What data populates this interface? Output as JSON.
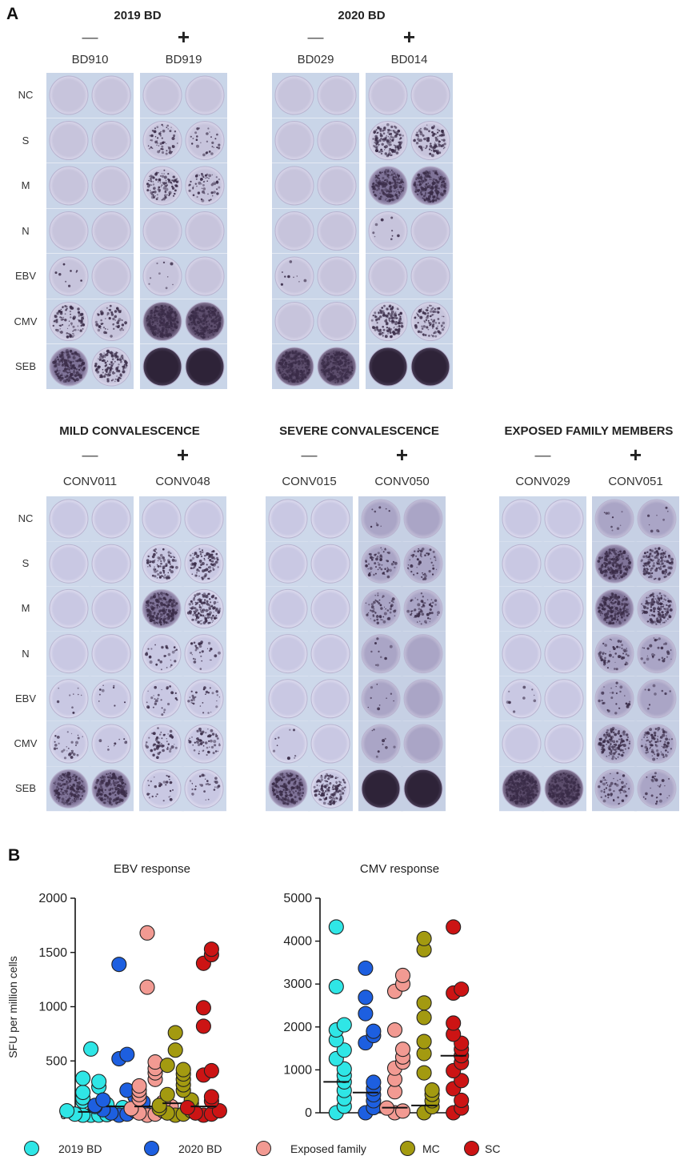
{
  "panel_a": {
    "letter": "A",
    "row_labels": [
      "NC",
      "S",
      "M",
      "N",
      "EBV",
      "CMV",
      "SEB"
    ],
    "top_groups": [
      {
        "title": "2019 BD",
        "columns": [
          {
            "sign": "—",
            "donor": "BD910",
            "response": [
              0,
              0,
              0,
              0,
              1,
              4,
              6
            ],
            "tone": "pale"
          },
          {
            "sign": "+",
            "donor": "BD919",
            "response": [
              0,
              3,
              4,
              0,
              1,
              7,
              9
            ],
            "tone": "pale"
          }
        ]
      },
      {
        "title": "2020 BD",
        "columns": [
          {
            "sign": "—",
            "donor": "BD029",
            "response": [
              0,
              0,
              0,
              0,
              1,
              0,
              7
            ],
            "tone": "pale"
          },
          {
            "sign": "+",
            "donor": "BD014",
            "response": [
              0,
              5,
              6,
              1,
              0,
              5,
              9
            ],
            "tone": "pale"
          }
        ]
      }
    ],
    "bottom_groups": [
      {
        "title": "MILD CONVALESCENCE",
        "columns": [
          {
            "sign": "—",
            "donor": "CONV011",
            "response": [
              0,
              0,
              0,
              0,
              1,
              2,
              6
            ],
            "tone": "light"
          },
          {
            "sign": "+",
            "donor": "CONV048",
            "response": [
              0,
              4,
              6,
              2,
              2,
              3,
              2
            ],
            "tone": "light"
          }
        ]
      },
      {
        "title": "SEVERE CONVALESCENCE",
        "columns": [
          {
            "sign": "—",
            "donor": "CONV015",
            "response": [
              0,
              0,
              0,
              0,
              0,
              1,
              6
            ],
            "tone": "light"
          },
          {
            "sign": "+",
            "donor": "CONV050",
            "response": [
              1,
              3,
              3,
              1,
              1,
              1,
              9
            ],
            "tone": "mid"
          }
        ]
      },
      {
        "title": "EXPOSED FAMILY MEMBERS",
        "columns": [
          {
            "sign": "—",
            "donor": "CONV029",
            "response": [
              0,
              0,
              0,
              0,
              1,
              0,
              8
            ],
            "tone": "light"
          },
          {
            "sign": "+",
            "donor": "CONV051",
            "response": [
              1,
              6,
              6,
              3,
              2,
              5,
              3
            ],
            "tone": "mid"
          }
        ]
      }
    ]
  },
  "panel_b": {
    "letter": "B",
    "ylabel": "SFU per million cells",
    "legend": [
      {
        "label": "2019 BD",
        "color": "#2fe6e6"
      },
      {
        "label": "2020 BD",
        "color": "#1d5fe0"
      },
      {
        "label": "Exposed family",
        "color": "#f29a92"
      },
      {
        "label": "MC",
        "color": "#a39a10"
      },
      {
        "label": "SC",
        "color": "#cc1414"
      }
    ]
  },
  "chart_data": [
    {
      "type": "scatter",
      "title": "EBV response",
      "ylabel": "SFU per million cells",
      "ylim": [
        0,
        2000
      ],
      "yticks": [
        0,
        500,
        1000,
        1500,
        2000
      ],
      "categories": [
        "2019 BD",
        "2020 BD",
        "Exposed family",
        "MC",
        "SC"
      ],
      "series": [
        {
          "name": "2019 BD",
          "values": [
            610,
            340,
            310,
            260,
            210,
            160,
            130,
            100,
            70,
            40,
            20,
            10,
            5,
            0,
            0,
            0
          ],
          "median": 30
        },
        {
          "name": "2020 BD",
          "values": [
            1390,
            560,
            520,
            230,
            170,
            140,
            120,
            90,
            80,
            70,
            50,
            40,
            20,
            10,
            0
          ],
          "median": 80
        },
        {
          "name": "Exposed family",
          "values": [
            1680,
            1180,
            490,
            430,
            390,
            330,
            270,
            230,
            190,
            150,
            120,
            80,
            60,
            40,
            20,
            10,
            0
          ],
          "median": 80
        },
        {
          "name": "MC",
          "values": [
            760,
            600,
            460,
            420,
            380,
            330,
            280,
            230,
            190,
            140,
            110,
            90,
            60,
            40,
            20,
            10,
            0
          ],
          "median": 110
        },
        {
          "name": "SC",
          "values": [
            1530,
            1480,
            1400,
            990,
            820,
            410,
            370,
            170,
            130,
            70,
            40,
            20,
            10,
            0
          ],
          "median": 80
        }
      ]
    },
    {
      "type": "scatter",
      "title": "CMV response",
      "ylim": [
        0,
        5000
      ],
      "yticks": [
        0,
        1000,
        2000,
        3000,
        4000,
        5000
      ],
      "categories": [
        "2019 BD",
        "2020 BD",
        "Exposed family",
        "MC",
        "SC"
      ],
      "series": [
        {
          "name": "2019 BD",
          "values": [
            4330,
            2940,
            2050,
            1930,
            1700,
            1460,
            1260,
            1020,
            870,
            720,
            520,
            330,
            150,
            0
          ],
          "median": 720
        },
        {
          "name": "2020 BD",
          "values": [
            3370,
            2690,
            2310,
            1900,
            1800,
            1630,
            710,
            560,
            420,
            280,
            120,
            0
          ],
          "median": 470
        },
        {
          "name": "Exposed family",
          "values": [
            3200,
            3000,
            2830,
            1930,
            1480,
            1300,
            1180,
            1040,
            780,
            490,
            110,
            40,
            0
          ],
          "median": 120
        },
        {
          "name": "MC",
          "values": [
            4060,
            3800,
            2560,
            2220,
            1660,
            1380,
            930,
            530,
            430,
            280,
            140,
            0
          ],
          "median": 170
        },
        {
          "name": "SC",
          "values": [
            4330,
            2880,
            2790,
            2090,
            1830,
            1620,
            1480,
            1330,
            1170,
            980,
            750,
            560,
            290,
            110,
            0
          ],
          "median": 1330
        }
      ]
    }
  ]
}
